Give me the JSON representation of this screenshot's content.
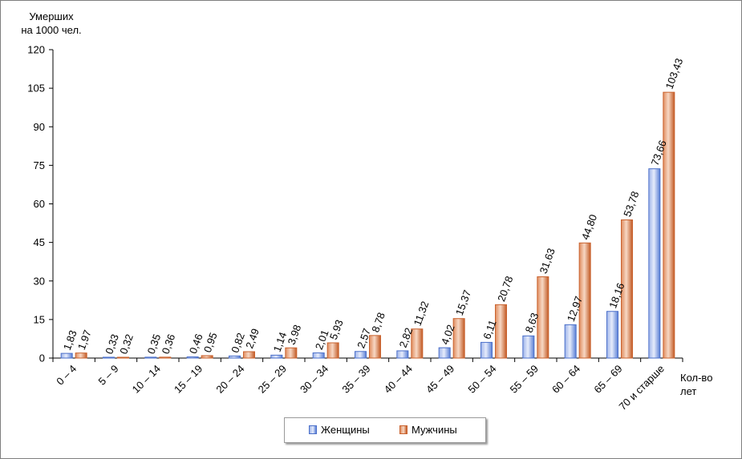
{
  "chart_data": {
    "type": "bar",
    "title": "",
    "ylabel_line1": "Умерших",
    "ylabel_line2": "на 1000 чел.",
    "xlabel_line1": "Кол-во",
    "xlabel_line2": "лет",
    "ylim": [
      0,
      120
    ],
    "yticks": [
      0,
      15,
      30,
      45,
      60,
      75,
      90,
      105,
      120
    ],
    "categories": [
      "0 – 4",
      "5 – 9",
      "10 – 14",
      "15 – 19",
      "20 – 24",
      "25 – 29",
      "30 – 34",
      "35 – 39",
      "40 – 44",
      "45 – 49",
      "50 – 54",
      "55 – 59",
      "60 – 64",
      "65 – 69",
      "70 и старше"
    ],
    "series": [
      {
        "name": "Женщины",
        "color": "#4a6fc9",
        "values": [
          1.83,
          0.33,
          0.35,
          0.46,
          0.82,
          1.14,
          2.01,
          2.57,
          2.82,
          4.02,
          6.11,
          8.63,
          12.97,
          18.16,
          73.66
        ],
        "labels": [
          "1,83",
          "0,33",
          "0,35",
          "0,46",
          "0,82",
          "1,14",
          "2,01",
          "2,57",
          "2,82",
          "4,02",
          "6,11",
          "8,63",
          "12,97",
          "18,16",
          "73,66"
        ]
      },
      {
        "name": "Мужчины",
        "color": "#c9622e",
        "values": [
          1.97,
          0.32,
          0.36,
          0.95,
          2.49,
          3.98,
          5.93,
          8.78,
          11.32,
          15.37,
          20.78,
          31.63,
          44.8,
          53.78,
          103.43
        ],
        "labels": [
          "1,97",
          "0,32",
          "0,36",
          "0,95",
          "2,49",
          "3,98",
          "5,93",
          "8,78",
          "11,32",
          "15,37",
          "20,78",
          "31,63",
          "44,80",
          "53,78",
          "103,43"
        ]
      }
    ],
    "legend_position": "bottom-center"
  }
}
